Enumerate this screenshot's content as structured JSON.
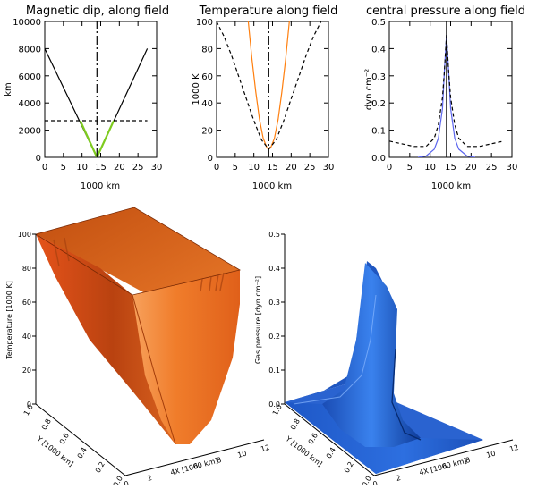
{
  "chart_data": [
    {
      "type": "line",
      "title": "Magnetic dip, along field",
      "xlabel": "1000 km",
      "ylabel": "km",
      "xlim": [
        0,
        30
      ],
      "ylim": [
        0,
        10000
      ],
      "xticks": [
        "0",
        "5",
        "10",
        "15",
        "20",
        "25",
        "30"
      ],
      "yticks": [
        "0",
        "2000",
        "4000",
        "6000",
        "8000",
        "10000"
      ],
      "series": [
        {
          "name": "field line",
          "color": "#000000",
          "style": "solid",
          "x": [
            0,
            14.0,
            27.5
          ],
          "y": [
            8000,
            0,
            8000
          ]
        },
        {
          "name": "lower segment",
          "color": "#7ecb1f",
          "style": "solid",
          "x": [
            9.5,
            14.0,
            18.5
          ],
          "y": [
            2700,
            0,
            2700
          ]
        },
        {
          "name": "threshold height",
          "color": "#000000",
          "style": "dashed",
          "x": [
            0,
            27.5
          ],
          "y": [
            2700,
            2700
          ]
        },
        {
          "name": "dip centre",
          "color": "#000000",
          "style": "dashdot",
          "x": [
            14.0,
            14.0
          ],
          "y": [
            0,
            10000
          ]
        }
      ]
    },
    {
      "type": "line",
      "title": "Temperature along field",
      "xlabel": "1000 km",
      "ylabel": "1000 K",
      "xlim": [
        0,
        30
      ],
      "ylim": [
        0,
        100
      ],
      "xticks": [
        "0",
        "5",
        "10",
        "15",
        "20",
        "25",
        "30"
      ],
      "yticks": [
        "0",
        "20",
        "40",
        "60",
        "80",
        "100"
      ],
      "series": [
        {
          "name": "temperature",
          "color": "#ff7f0e",
          "style": "solid",
          "x": [
            8.5,
            9.5,
            10.5,
            11.5,
            12.5,
            13.5,
            14.0,
            14.5,
            15.5,
            16.5,
            17.5,
            18.5,
            19.5
          ],
          "y": [
            100,
            72,
            48,
            28,
            14,
            7,
            6,
            7,
            14,
            28,
            48,
            72,
            100
          ]
        },
        {
          "name": "reference",
          "color": "#000000",
          "style": "dashed",
          "x": [
            0,
            2,
            4,
            6,
            8,
            10,
            12,
            14,
            16,
            18,
            20,
            22,
            24,
            26,
            28
          ],
          "y": [
            100,
            89,
            75,
            59,
            43,
            27,
            13,
            6,
            13,
            27,
            43,
            59,
            75,
            89,
            100
          ]
        },
        {
          "name": "dip centre",
          "color": "#000000",
          "style": "dashdot",
          "x": [
            14.0,
            14.0
          ],
          "y": [
            0,
            100
          ]
        }
      ]
    },
    {
      "type": "line",
      "title": "central pressure along field",
      "xlabel": "1000 km",
      "ylabel": "dyn cm⁻²",
      "xlim": [
        0,
        30
      ],
      "ylim": [
        0,
        0.5
      ],
      "xticks": [
        "0",
        "5",
        "10",
        "15",
        "20",
        "25",
        "30"
      ],
      "yticks": [
        "0.0",
        "0.1",
        "0.2",
        "0.3",
        "0.4",
        "0.5"
      ],
      "series": [
        {
          "name": "pressure",
          "color": "#5a64ee",
          "style": "solid",
          "x": [
            7,
            9,
            11,
            12,
            13,
            13.5,
            14.0,
            14.5,
            15,
            16,
            17,
            19,
            21
          ],
          "y": [
            0.0,
            0.005,
            0.03,
            0.07,
            0.18,
            0.32,
            0.45,
            0.32,
            0.18,
            0.07,
            0.03,
            0.005,
            0.0
          ]
        },
        {
          "name": "reference",
          "color": "#000000",
          "style": "dashed",
          "x": [
            0,
            3,
            6,
            9,
            11,
            12,
            13,
            13.5,
            14.0,
            14.5,
            15,
            16,
            17,
            19,
            22,
            25,
            28
          ],
          "y": [
            0.06,
            0.05,
            0.04,
            0.04,
            0.07,
            0.12,
            0.22,
            0.32,
            0.45,
            0.32,
            0.22,
            0.12,
            0.07,
            0.04,
            0.04,
            0.05,
            0.06
          ]
        },
        {
          "name": "dip centre",
          "color": "#000000",
          "style": "solid",
          "x": [
            14.0,
            14.0
          ],
          "y": [
            0,
            0.5
          ]
        }
      ]
    },
    {
      "type": "surface",
      "zlabel": "Temperature [1000 K]",
      "xlabel": "X [1000 km]",
      "ylabel": "Y [1000 km]",
      "zticks": [
        "0",
        "20",
        "40",
        "60",
        "80",
        "100"
      ],
      "xticks": [
        "0",
        "2",
        "4",
        "6",
        "8",
        "10",
        "12"
      ],
      "yticks": [
        "0.0",
        "0.2",
        "0.4",
        "0.6",
        "0.8",
        "1.0"
      ],
      "zlim": [
        0,
        100
      ],
      "color": "#f07a28"
    },
    {
      "type": "surface",
      "zlabel": "Gas pressure [dyn cm⁻²]",
      "xlabel": "X [1000 km]",
      "ylabel": "Y [1000 km]",
      "zticks": [
        "0.0",
        "0.1",
        "0.2",
        "0.3",
        "0.4",
        "0.5"
      ],
      "xticks": [
        "0",
        "2",
        "4",
        "6",
        "8",
        "10",
        "12"
      ],
      "yticks": [
        "0.0",
        "0.2",
        "0.4",
        "0.6",
        "0.8",
        "1.0"
      ],
      "zlim": [
        0,
        0.5
      ],
      "color": "#2f6fd8"
    }
  ]
}
